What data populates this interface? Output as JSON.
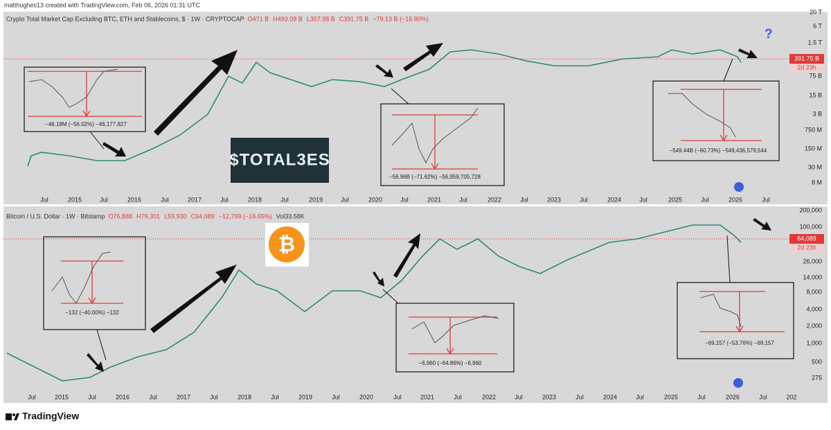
{
  "header": {
    "caption": "matthughes13 created with TradingView.com, Feb 06, 2026 01:31 UTC"
  },
  "top_panel": {
    "legend": {
      "symbol": "Crypto Total Market Cap Excluding BTC, ETH and Stablecoins, $ · 1W · CRYPTOCAP",
      "open": "O471 B",
      "high": "H493.09 B",
      "low": "L357.98 B",
      "close": "C391.75 B",
      "change": "−79.13 B (−16.80%)"
    },
    "price_axis": [
      "20 T",
      "6 T",
      "1.5 T",
      "75 B",
      "15 B",
      "3 B",
      "750 M",
      "150 M",
      "30 M",
      "8 M"
    ],
    "last_price": "391.75 B",
    "countdown": "2d 23h",
    "time_axis": [
      "Jul",
      "2015",
      "Jul",
      "2016",
      "Jul",
      "2017",
      "Jul",
      "2018",
      "Jul",
      "2019",
      "Jul",
      "2020",
      "Jul",
      "2021",
      "Jul",
      "2022",
      "Jul",
      "2023",
      "Jul",
      "2024",
      "Jul",
      "2025",
      "Jul",
      "2026",
      "Jul"
    ],
    "measures": [
      "−46.18M (−56.02%) −46,177,827",
      "−56.96B (−71.62%) −56,959,705,728",
      "−549.44B (−60.73%) −549,436,579,544"
    ],
    "logo": "$TOTAL3ES",
    "question": "?"
  },
  "bottom_panel": {
    "legend": {
      "symbol": "Bitcoin / U.S. Dollar · 1W · Bitstamp",
      "open": "O76,888",
      "high": "H79,301",
      "low": "L59,930",
      "close": "C64,089",
      "change": "−12,799 (−16.65%)",
      "volume": "Vol33.58K"
    },
    "price_axis": [
      "200,000",
      "100,000",
      "26,000",
      "14,000",
      "8,000",
      "4,000",
      "2,000",
      "1,000",
      "500",
      "275"
    ],
    "last_price": "64,089",
    "countdown": "2d 23h",
    "time_axis": [
      "Jul",
      "2015",
      "Jul",
      "2016",
      "Jul",
      "2017",
      "Jul",
      "2018",
      "Jul",
      "2019",
      "Jul",
      "2020",
      "Jul",
      "2021",
      "Jul",
      "2022",
      "Jul",
      "2023",
      "Jul",
      "2024",
      "Jul",
      "2025",
      "Jul",
      "2026",
      "Jul",
      "202"
    ],
    "measures": [
      "−132 (−40.00%) −132",
      "−6,960 (−64.86%) −6,960",
      "−69,157 (−53.76%) −69,157"
    ]
  },
  "footer": {
    "brand": "TradingView"
  }
}
